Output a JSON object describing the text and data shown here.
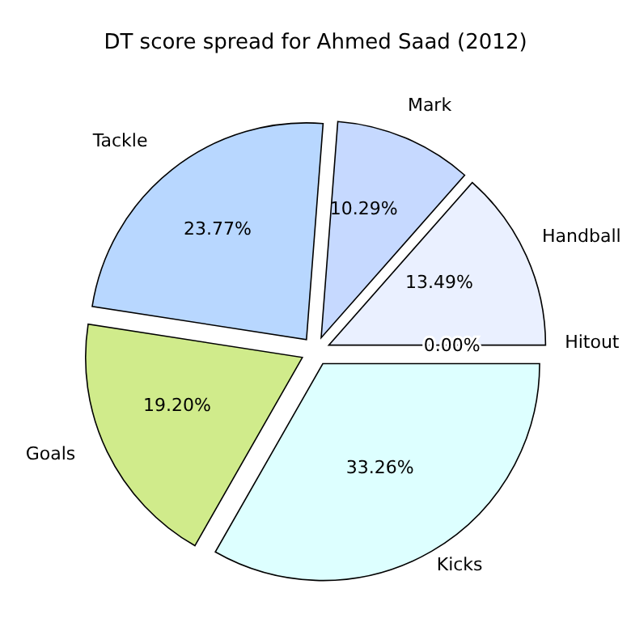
{
  "chart_data": {
    "type": "pie",
    "title": "DT score spread for Ahmed Saad (2012)",
    "categories": [
      "Hitout",
      "Handball",
      "Mark",
      "Tackle",
      "Goals",
      "Kicks"
    ],
    "values": [
      0.0,
      13.49,
      10.29,
      23.77,
      19.2,
      33.26
    ],
    "value_labels": [
      "0.00%",
      "13.49%",
      "10.29%",
      "23.77%",
      "19.20%",
      "33.26%"
    ],
    "colors": [
      "#ffffff",
      "#eaf0ff",
      "#c6d9ff",
      "#b8d7ff",
      "#d0eb8b",
      "#ddffff"
    ],
    "legend": false
  }
}
